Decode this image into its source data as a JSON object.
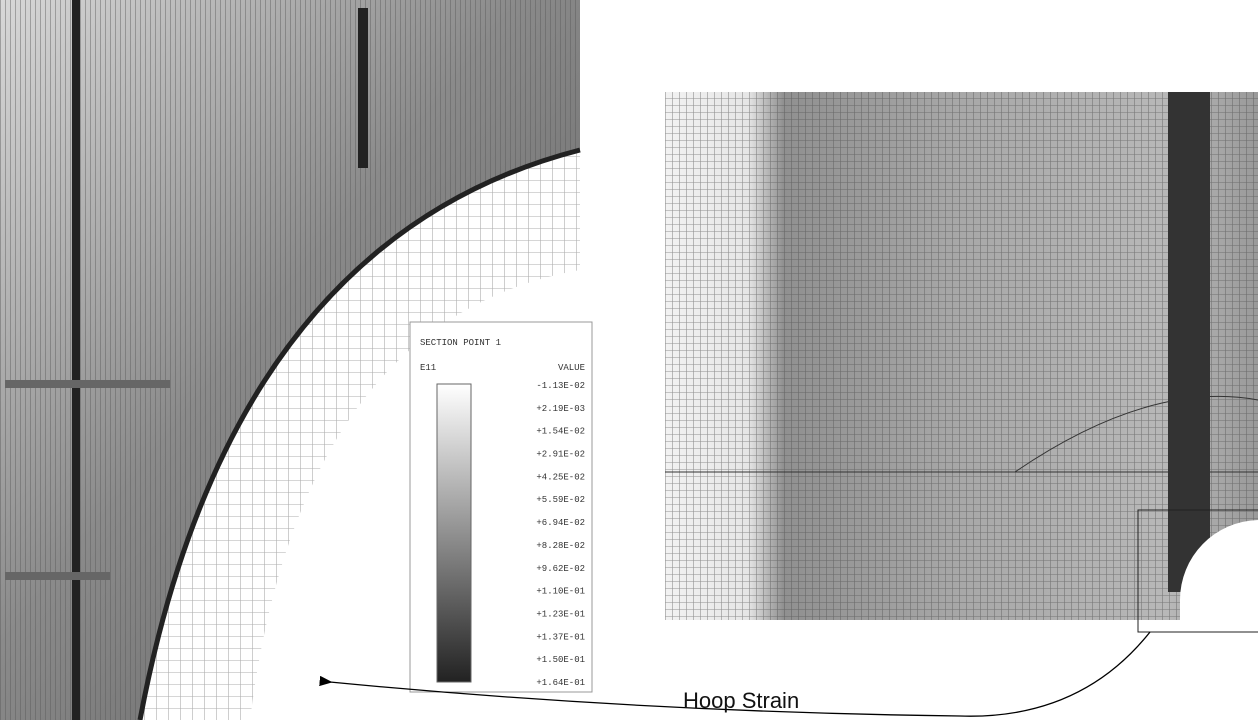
{
  "legend": {
    "title": "SECTION POINT 1",
    "variable": "E11",
    "value_header": "VALUE",
    "entries": [
      "-1.13E-02",
      "+2.19E-03",
      "+1.54E-02",
      "+2.91E-02",
      "+4.25E-02",
      "+5.59E-02",
      "+6.94E-02",
      "+8.28E-02",
      "+9.62E-02",
      "+1.10E-01",
      "+1.23E-01",
      "+1.37E-01",
      "+1.50E-01",
      "+1.64E-01"
    ]
  },
  "caption": "Hoop Strain"
}
